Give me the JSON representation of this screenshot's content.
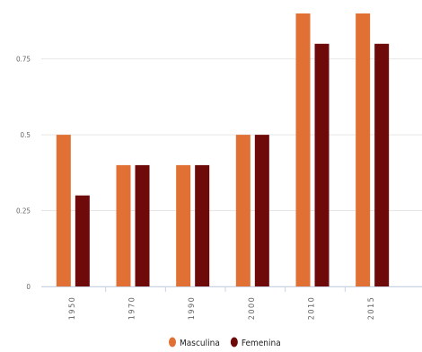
{
  "chart_data": {
    "type": "bar",
    "title": "",
    "xlabel": "",
    "ylabel": "",
    "categories": [
      "1950",
      "1970",
      "1990",
      "2000",
      "2010",
      "2015"
    ],
    "series": [
      {
        "name": "Masculina",
        "color": "#E07033",
        "values": [
          0.5,
          0.4,
          0.4,
          0.5,
          0.9,
          0.9
        ]
      },
      {
        "name": "Femenina",
        "color": "#6E0A0A",
        "values": [
          0.3,
          0.4,
          0.4,
          0.5,
          0.8,
          0.8
        ]
      }
    ],
    "yticks": [
      "0",
      "0.25",
      "0.5",
      "0.75"
    ],
    "ylim": [
      0,
      0.9
    ],
    "grid": true,
    "legend_position": "bottom-center",
    "x_tick_rotation": "vertical"
  }
}
